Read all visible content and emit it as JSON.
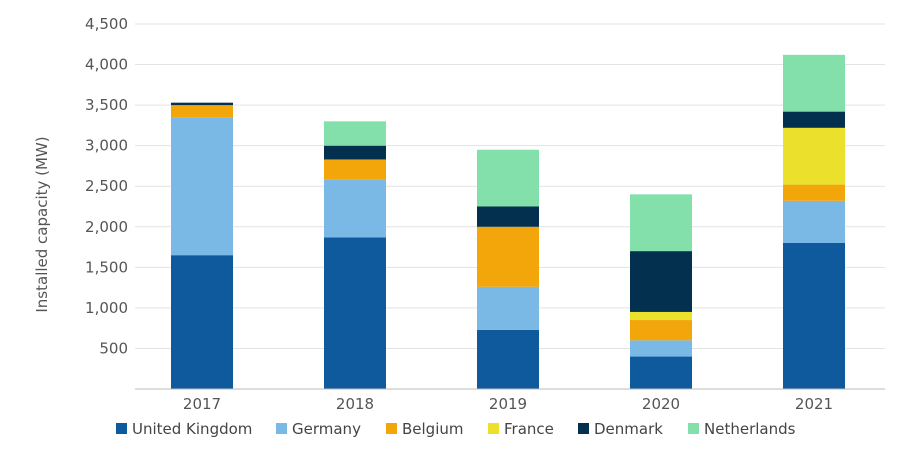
{
  "chart_data": {
    "type": "bar",
    "stacked": true,
    "title": "",
    "xlabel": "",
    "ylabel": "Installed capacity (MW)",
    "ylim": [
      0,
      4500
    ],
    "yticks": [
      500,
      1000,
      1500,
      2000,
      2500,
      3000,
      3500,
      4000,
      4500
    ],
    "ytick_labels": [
      "500",
      "1,000",
      "1,500",
      "2,000",
      "2,500",
      "3,000",
      "3,500",
      "4,000",
      "4,500"
    ],
    "categories": [
      "2017",
      "2018",
      "2019",
      "2020",
      "2021"
    ],
    "legend_position": "bottom",
    "grid": true,
    "series": [
      {
        "name": "United Kingdom",
        "color": "#0f5a9c",
        "values": [
          1650,
          1870,
          730,
          400,
          1800
        ]
      },
      {
        "name": "Germany",
        "color": "#7ab9e6",
        "values": [
          1700,
          710,
          530,
          200,
          520
        ]
      },
      {
        "name": "Belgium",
        "color": "#f2a60a",
        "values": [
          150,
          250,
          740,
          250,
          200
        ]
      },
      {
        "name": "France",
        "color": "#ebe02c",
        "values": [
          0,
          0,
          0,
          100,
          700
        ]
      },
      {
        "name": "Denmark",
        "color": "#04304f",
        "values": [
          30,
          170,
          250,
          750,
          200
        ]
      },
      {
        "name": "Netherlands",
        "color": "#84e0ab",
        "values": [
          0,
          300,
          700,
          700,
          700
        ]
      }
    ]
  }
}
